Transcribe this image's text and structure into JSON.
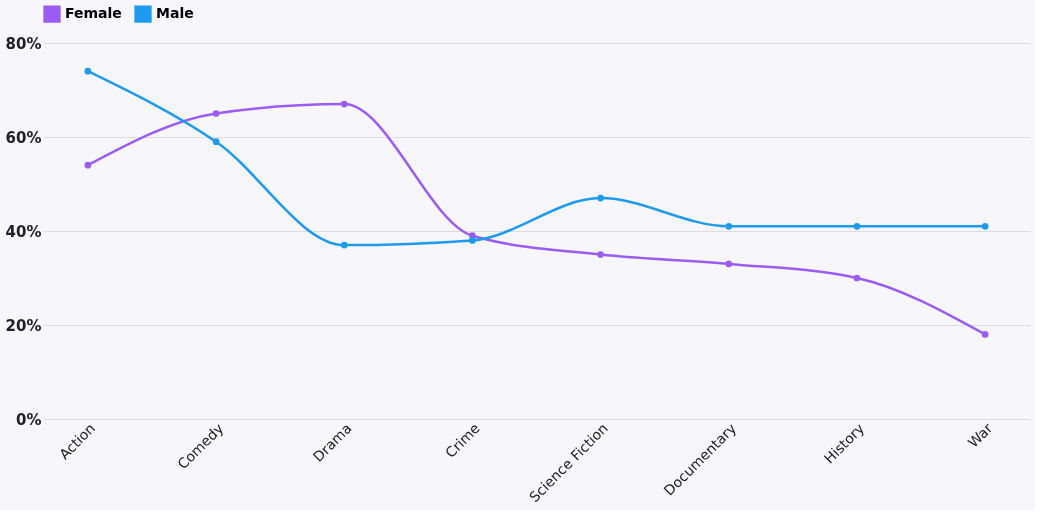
{
  "chart_data": {
    "type": "line",
    "categories": [
      "Action",
      "Comedy",
      "Drama",
      "Crime",
      "Science Fiction",
      "Documentary",
      "History",
      "War"
    ],
    "series": [
      {
        "name": "Female",
        "color": "#9b5cf6",
        "values": [
          54,
          65,
          67,
          39,
          35,
          33,
          30,
          18
        ]
      },
      {
        "name": "Male",
        "color": "#1e9bf0",
        "values": [
          74,
          59,
          37,
          38,
          47,
          41,
          41,
          41
        ]
      }
    ],
    "ylim": [
      0,
      80
    ],
    "yticks": [
      {
        "value": 0,
        "label": "0%"
      },
      {
        "value": 20,
        "label": "20%"
      },
      {
        "value": 40,
        "label": "40%"
      },
      {
        "value": 60,
        "label": "60%"
      },
      {
        "value": 80,
        "label": "80%"
      }
    ],
    "grid": "y",
    "legend": "top",
    "marker": "circle",
    "line_style": "solid"
  }
}
